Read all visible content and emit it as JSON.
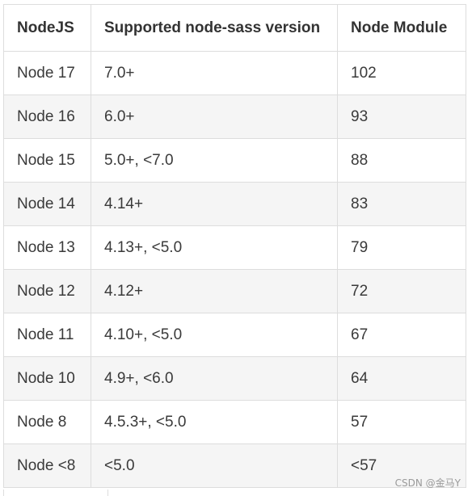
{
  "table": {
    "headers": [
      "NodeJS",
      "Supported node-sass version",
      "Node Module"
    ],
    "rows": [
      [
        "Node 17",
        "7.0+",
        "102"
      ],
      [
        "Node 16",
        "6.0+",
        "93"
      ],
      [
        "Node 15",
        "5.0+, <7.0",
        "88"
      ],
      [
        "Node 14",
        "4.14+",
        "83"
      ],
      [
        "Node 13",
        "4.13+, <5.0",
        "79"
      ],
      [
        "Node 12",
        "4.12+",
        "72"
      ],
      [
        "Node 11",
        "4.10+, <5.0",
        "67"
      ],
      [
        "Node 10",
        "4.9+, <6.0",
        "64"
      ],
      [
        "Node 8",
        "4.5.3+, <5.0",
        "57"
      ],
      [
        "Node <8",
        "<5.0",
        "<57"
      ]
    ]
  },
  "watermark": "CSDN @金马Y",
  "colors": {
    "border": "#dddddd",
    "stripe": "#f5f5f5",
    "text": "#333333"
  }
}
